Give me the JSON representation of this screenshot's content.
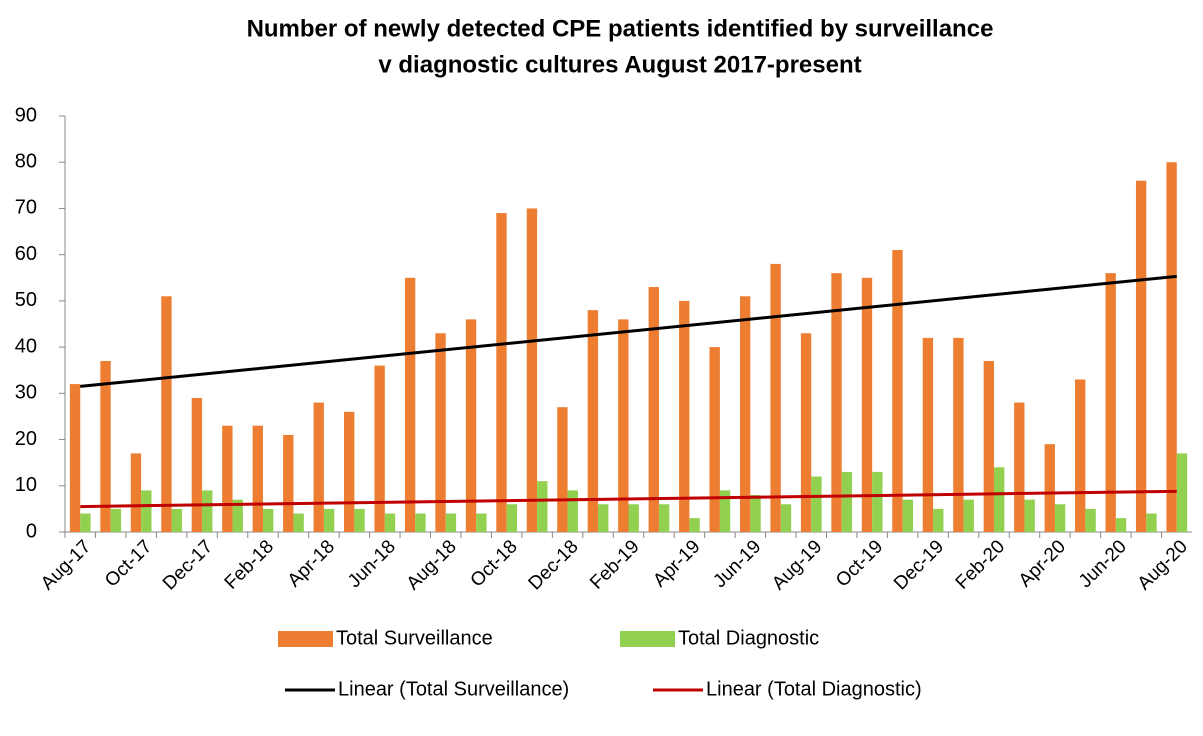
{
  "chart_data": {
    "type": "bar",
    "title": [
      "Number of newly detected CPE patients identified by surveillance",
      "v diagnostic cultures August 2017-present"
    ],
    "categories": [
      "Aug-17",
      null,
      "Oct-17",
      null,
      "Dec-17",
      null,
      "Feb-18",
      null,
      "Apr-18",
      null,
      "Jun-18",
      null,
      "Aug-18",
      null,
      "Oct-18",
      null,
      "Dec-18",
      null,
      "Feb-19",
      null,
      "Apr-19",
      null,
      "Jun-19",
      null,
      "Aug-19",
      null,
      "Oct-19",
      null,
      "Dec-19",
      null,
      "Feb-20",
      null,
      "Apr-20",
      null,
      "Jun-20",
      null,
      "Aug-20"
    ],
    "series": [
      {
        "name": "Total Surveillance",
        "color": "#ed7d31",
        "values": [
          32,
          37,
          17,
          51,
          29,
          23,
          23,
          21,
          28,
          26,
          36,
          55,
          43,
          46,
          69,
          70,
          27,
          48,
          46,
          53,
          50,
          40,
          51,
          58,
          43,
          56,
          55,
          61,
          42,
          42,
          37,
          28,
          19,
          33,
          56,
          76,
          80
        ]
      },
      {
        "name": "Total Diagnostic",
        "color": "#92d050",
        "values": [
          4,
          5,
          9,
          5,
          9,
          7,
          5,
          4,
          5,
          5,
          4,
          4,
          4,
          4,
          6,
          11,
          9,
          6,
          6,
          6,
          3,
          9,
          8,
          6,
          12,
          13,
          13,
          7,
          5,
          7,
          14,
          7,
          6,
          5,
          3,
          4,
          17
        ]
      }
    ],
    "trendlines": [
      {
        "name": "Linear (Total Surveillance)",
        "color": "#000000",
        "values": [
          31.5,
          55.3
        ]
      },
      {
        "name": "Linear (Total Diagnostic)",
        "color": "#c00000",
        "values": [
          5.5,
          8.8
        ]
      }
    ],
    "ylim": [
      0,
      90
    ],
    "yticks": [
      0,
      10,
      20,
      30,
      40,
      50,
      60,
      70,
      80,
      90
    ],
    "grid": false
  }
}
